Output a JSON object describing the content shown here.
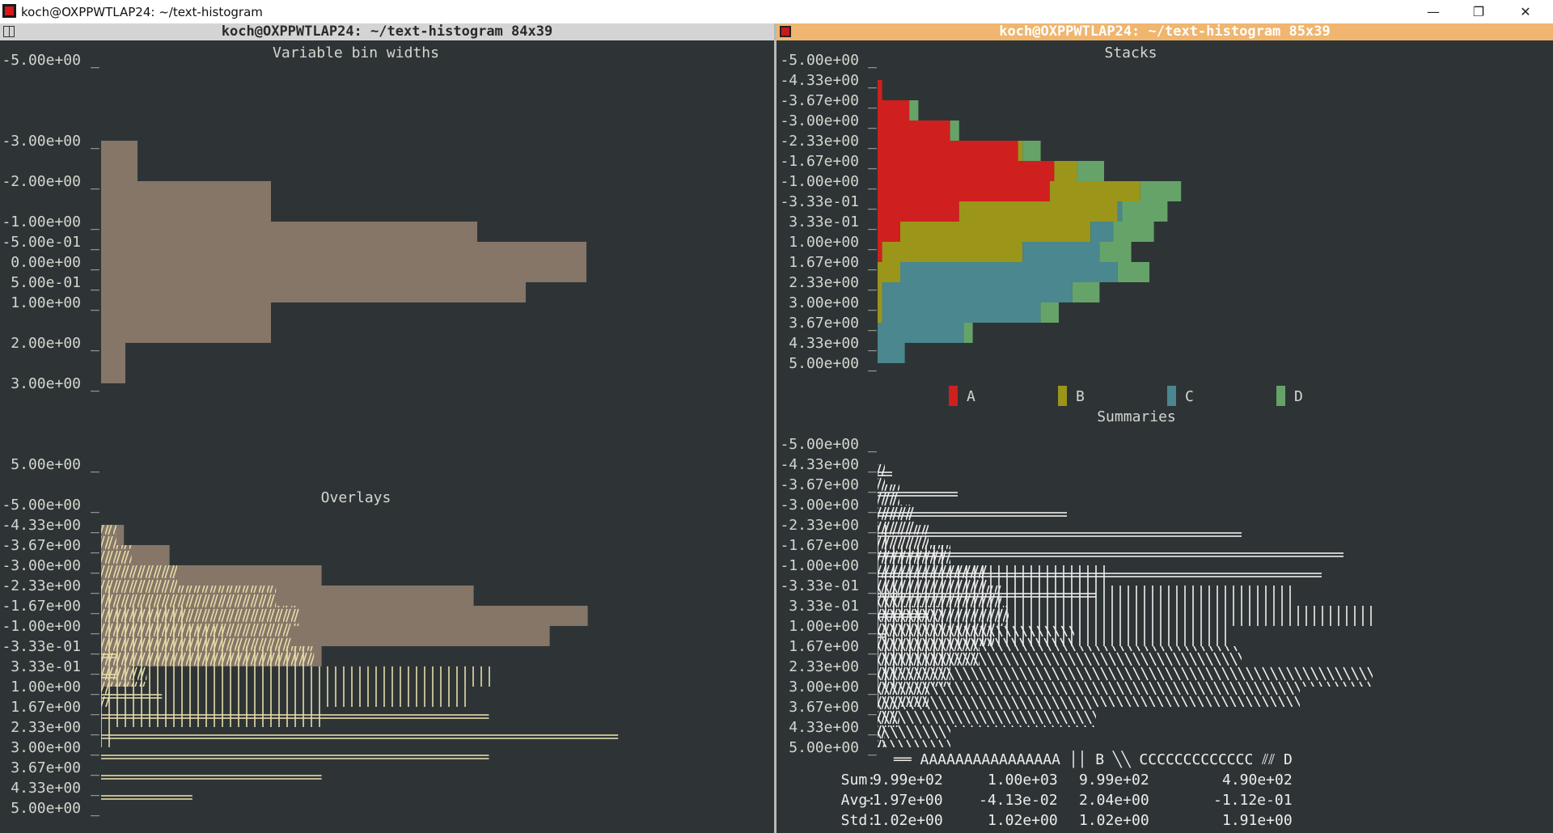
{
  "window": {
    "title": "koch@OXPPWTLAP24: ~/text-histogram",
    "left_term_title": "koch@OXPPWTLAP24: ~/text-histogram 84x39",
    "right_term_title": "koch@OXPPWTLAP24: ~/text-histogram 85x39",
    "minimize_glyph": "—",
    "restore_glyph": "❐",
    "close_glyph": "✕"
  },
  "colors": {
    "background": "#2e3436",
    "text": "#d3d7cf",
    "fill": "#857668",
    "overlay": "#e6dca8",
    "summary": "#eeeeec",
    "A": "#d01f1f",
    "B": "#9b951a",
    "C": "#4a878e",
    "D": "#66a368"
  },
  "chart_data": [
    {
      "type": "bar",
      "title": "Variable bin widths",
      "orientation": "horizontal",
      "tick_labels": [
        "-5.00e+00",
        "-3.00e+00",
        "-2.00e+00",
        "-1.00e+00",
        "-5.00e-01",
        "0.00e+00",
        "5.00e-01",
        "1.00e+00",
        "2.00e+00",
        "3.00e+00",
        "5.00e+00"
      ],
      "ticks": [
        -5,
        -3,
        -2,
        -1,
        -0.5,
        0,
        0.5,
        1,
        2,
        3,
        5
      ],
      "bins": [
        {
          "from": -3,
          "to": -2,
          "count": 3
        },
        {
          "from": -2,
          "to": -1,
          "count": 14
        },
        {
          "from": -1,
          "to": -0.5,
          "count": 31
        },
        {
          "from": -0.5,
          "to": 0.5,
          "count": 40
        },
        {
          "from": 0.5,
          "to": 1,
          "count": 35
        },
        {
          "from": 1,
          "to": 2,
          "count": 14
        },
        {
          "from": 2,
          "to": 3,
          "count": 2
        }
      ]
    },
    {
      "type": "bar",
      "title": "Overlays",
      "orientation": "horizontal",
      "tick_labels": [
        "-5.00e+00",
        "-4.33e+00",
        "-3.67e+00",
        "-3.00e+00",
        "-2.33e+00",
        "-1.67e+00",
        "-1.00e+00",
        "-3.33e-01",
        "3.33e-01",
        "1.00e+00",
        "1.67e+00",
        "2.33e+00",
        "3.00e+00",
        "3.67e+00",
        "4.33e+00",
        "5.00e+00"
      ],
      "bins": [
        "-5.00e+00",
        "-4.33e+00",
        "-3.67e+00",
        "-3.00e+00",
        "-2.33e+00",
        "-1.67e+00",
        "-1.00e+00",
        "-3.33e-01",
        "3.33e-01",
        "1.00e+00",
        "1.67e+00",
        "2.33e+00",
        "3.00e+00",
        "3.67e+00",
        "4.33e+00"
      ],
      "series": [
        {
          "values": [
            0,
            3,
            9,
            29,
            49,
            64,
            59,
            29,
            4,
            0,
            0,
            0,
            0,
            0,
            0
          ]
        },
        {
          "values": [
            0,
            2,
            4,
            10,
            23,
            26,
            25,
            28,
            6,
            1,
            0,
            0,
            0,
            0,
            0
          ]
        },
        {
          "values": [
            0,
            0,
            0,
            0,
            2,
            11,
            16,
            27,
            52,
            48,
            29,
            2,
            0,
            0,
            0
          ]
        },
        {
          "values": [
            0,
            0,
            0,
            0,
            0,
            0,
            0,
            2,
            2,
            8,
            51,
            68,
            51,
            29,
            12
          ]
        }
      ]
    },
    {
      "type": "bar",
      "title": "Stacks",
      "orientation": "horizontal",
      "stacked": true,
      "tick_labels": [
        "-5.00e+00",
        "-4.33e+00",
        "-3.67e+00",
        "-3.00e+00",
        "-2.33e+00",
        "-1.67e+00",
        "-1.00e+00",
        "-3.33e-01",
        "3.33e-01",
        "1.00e+00",
        "1.67e+00",
        "2.33e+00",
        "3.00e+00",
        "3.67e+00",
        "4.33e+00",
        "5.00e+00"
      ],
      "bins": [
        "-5.00e+00",
        "-4.33e+00",
        "-3.67e+00",
        "-3.00e+00",
        "-2.33e+00",
        "-1.67e+00",
        "-1.00e+00",
        "-3.33e-01",
        "3.33e-01",
        "1.00e+00",
        "1.67e+00",
        "2.33e+00",
        "3.00e+00",
        "3.67e+00",
        "4.33e+00"
      ],
      "series": [
        {
          "name": "A",
          "values": [
            0,
            1,
            7,
            16,
            31,
            39,
            38,
            18,
            5,
            1,
            0,
            0,
            0,
            0,
            0
          ]
        },
        {
          "name": "B",
          "values": [
            0,
            0,
            0,
            0,
            1,
            5,
            20,
            35,
            42,
            31,
            5,
            1,
            1,
            0,
            0
          ]
        },
        {
          "name": "C",
          "values": [
            0,
            0,
            0,
            0,
            0,
            0,
            0,
            1,
            5,
            17,
            48,
            42,
            35,
            19,
            6
          ]
        },
        {
          "name": "D",
          "values": [
            0,
            0,
            2,
            2,
            4,
            6,
            9,
            10,
            9,
            7,
            7,
            6,
            4,
            2,
            0
          ]
        }
      ],
      "legend": [
        "A",
        "B",
        "C",
        "D"
      ]
    },
    {
      "type": "bar",
      "title": "Summaries",
      "orientation": "horizontal",
      "tick_labels": [
        "-5.00e+00",
        "-4.33e+00",
        "-3.67e+00",
        "-3.00e+00",
        "-2.33e+00",
        "-1.67e+00",
        "-1.00e+00",
        "-3.33e-01",
        "3.33e-01",
        "1.00e+00",
        "1.67e+00",
        "2.33e+00",
        "3.00e+00",
        "3.67e+00",
        "4.33e+00",
        "5.00e+00"
      ],
      "bins": [
        "-5.00e+00",
        "-4.33e+00",
        "-3.67e+00",
        "-3.00e+00",
        "-2.33e+00",
        "-1.67e+00",
        "-1.00e+00",
        "-3.33e-01",
        "3.33e-01",
        "1.00e+00",
        "1.67e+00",
        "2.33e+00",
        "3.00e+00",
        "3.67e+00",
        "4.33e+00"
      ],
      "series": [
        {
          "name": "A",
          "values": [
            0,
            2,
            11,
            26,
            50,
            64,
            61,
            30,
            7,
            1,
            0,
            0,
            0,
            0,
            0
          ]
        },
        {
          "name": "B",
          "values": [
            0,
            0,
            0,
            0,
            2,
            9,
            32,
            57,
            68,
            48,
            10,
            3,
            1,
            0,
            0
          ]
        },
        {
          "name": "C",
          "values": [
            0,
            0,
            0,
            0,
            0,
            0,
            0,
            3,
            9,
            27,
            50,
            68,
            58,
            30,
            10
          ]
        },
        {
          "name": "D",
          "values": [
            0,
            1,
            3,
            5,
            7,
            10,
            15,
            17,
            18,
            16,
            14,
            10,
            7,
            3,
            1
          ]
        }
      ],
      "legend_line": "══ AAAAAAAAAAAAAAAA ││ B        ╲╲ CCCCCCCCCCCCC ⫽⫽ D",
      "legend": [
        {
          "glyph": "══",
          "label": "AAAAAAAAAAAAAAAA"
        },
        {
          "glyph": "││",
          "label": "B"
        },
        {
          "glyph": "╲╲",
          "label": "CCCCCCCCCCCCC"
        },
        {
          "glyph": "⫽⫽",
          "label": "D"
        }
      ],
      "stats": [
        {
          "label": "Sum:",
          "values": [
            "9.99e+02",
            "1.00e+03",
            "9.99e+02",
            "4.90e+02"
          ]
        },
        {
          "label": "Avg:",
          "values": [
            "-1.97e+00",
            "-4.13e-02",
            "2.04e+00",
            "-1.12e-01"
          ]
        },
        {
          "label": "Std:",
          "values": [
            "1.02e+00",
            "1.02e+00",
            "1.02e+00",
            "1.91e+00"
          ]
        }
      ]
    }
  ]
}
